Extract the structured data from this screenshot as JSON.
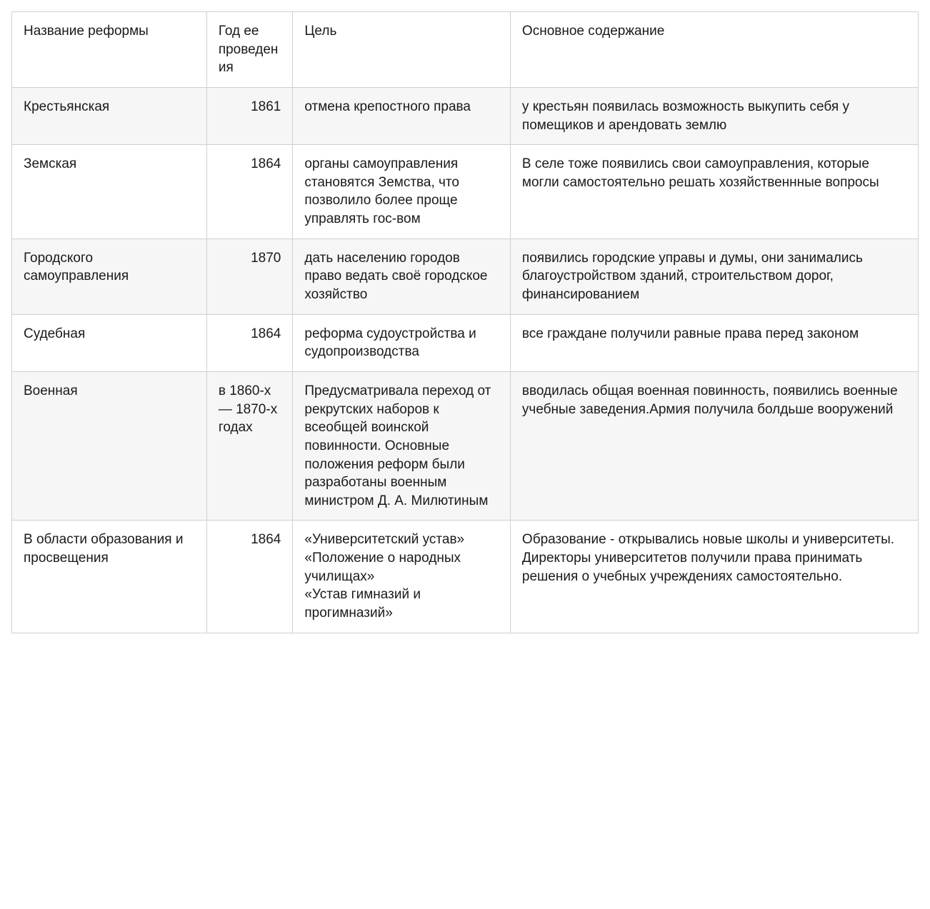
{
  "table": {
    "type": "table",
    "background_color": "#ffffff",
    "stripe_color": "#f6f6f6",
    "border_color": "#d0d0d0",
    "text_color": "#1a1a1a",
    "font_size_pt": 14,
    "columns": [
      {
        "key": "name",
        "label": "Название реформы",
        "width_pct": 21.5,
        "align": "left"
      },
      {
        "key": "year",
        "label": "Год ее проведения",
        "width_pct": 9.5,
        "align": "right"
      },
      {
        "key": "goal",
        "label": "Цель",
        "width_pct": 24,
        "align": "left"
      },
      {
        "key": "content",
        "label": "Основное содержание",
        "width_pct": 45,
        "align": "left"
      }
    ],
    "rows": [
      {
        "name": "Крестьянская",
        "year": "1861",
        "year_numeric": true,
        "goal": "отмена крепостного права",
        "content": "у крестьян появилась возможность выкупить себя у помещиков и арендовать землю"
      },
      {
        "name": "Земская",
        "year": "1864",
        "year_numeric": true,
        "goal": "органы самоуправления становятся Земства, что позволило более проще управлять гос-вом",
        "content": "В селе тоже появились свои самоуправления, которые могли самостоятельно решать хозяйственнные вопросы"
      },
      {
        "name": "Городского самоуправления",
        "year": "1870",
        "year_numeric": true,
        "goal": "дать населению городов право ведать своё городское хозяйство",
        "content": "появились городские управы и думы, они занимались благоустройством зданий, строительством дорог, финансированием"
      },
      {
        "name": "Судебная",
        "year": "1864",
        "year_numeric": true,
        "goal": "реформа судоустройства и судопроизводства",
        "content": "все граждане получили равные права перед законом"
      },
      {
        "name": "Военная",
        "year": "в 1860-х — 1870-х годах",
        "year_numeric": false,
        "goal": "Предусматривала переход от рекрутских наборов к всеобщей воинской повинности. Основные положения реформ были разработаны военным министром Д. А. Милютиным",
        "content": "вводилась общая военная повинность, появились военные учебные заведения.Армия получила болдьше вооружений"
      },
      {
        "name": "В области образования и просвещения",
        "year": "1864",
        "year_numeric": true,
        "goal": "«Университетский устав»\n«Положение о народных училищах»\n«Устав гимназий и прогимназий»",
        "content": "Образование - открывались новые школы и университеты. Директоры университетов получили права принимать решения  о учебных учреждениях самостоятельно."
      }
    ]
  }
}
